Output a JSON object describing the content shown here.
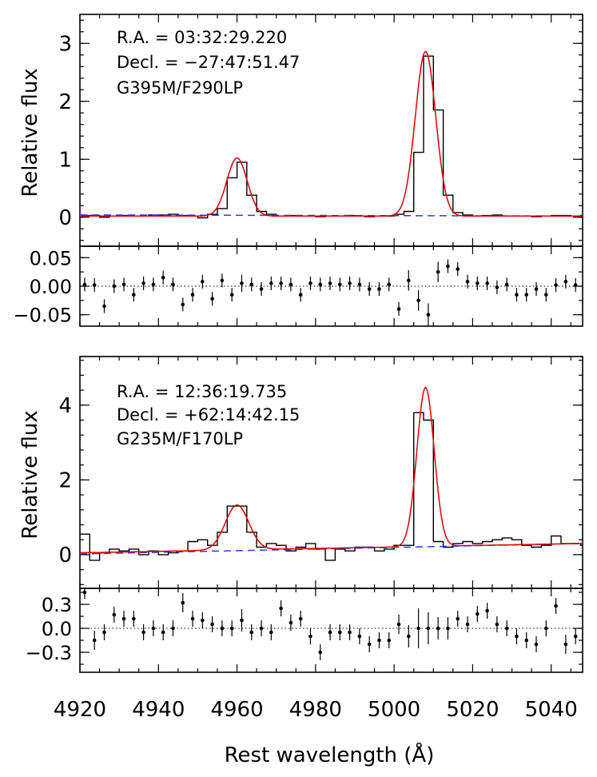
{
  "chart_data": [
    {
      "type": "line",
      "panel": "top-spectrum",
      "ylabel": "Relative flux",
      "annotations": [
        "R.A. = 03:32:29.220",
        "Decl. = −27:47:51.47",
        "G395M/F290LP"
      ],
      "xlim": [
        4920,
        5048
      ],
      "ylim": [
        -0.5,
        3.5
      ],
      "yticks": [
        0,
        1,
        2,
        3
      ],
      "ytick_labels": [
        "0",
        "1",
        "2",
        "3"
      ],
      "series": [
        {
          "style": "step",
          "color": "#000000",
          "x": [
            4920,
            4922.5,
            4925,
            4927.5,
            4930,
            4932.5,
            4935,
            4937.5,
            4940,
            4942.5,
            4945,
            4947.5,
            4950,
            4952.5,
            4955,
            4957.5,
            4960,
            4962.5,
            4965,
            4967.5,
            4970,
            4972.5,
            4975,
            4977.5,
            4980,
            4982.5,
            4985,
            4987.5,
            4990,
            4992.5,
            4995,
            4997.5,
            5000,
            5002.5,
            5005,
            5007.5,
            5010,
            5012.5,
            5015,
            5017.5,
            5020,
            5022.5,
            5025,
            5027.5,
            5030,
            5032.5,
            5035,
            5037.5,
            5040,
            5042.5,
            5045,
            5047.5
          ],
          "y": [
            0.03,
            0.03,
            0.0,
            0.02,
            0.03,
            0.02,
            0.02,
            0.04,
            0.04,
            0.05,
            0.03,
            0.02,
            -0.01,
            0.05,
            0.15,
            0.68,
            0.95,
            0.38,
            0.1,
            0.05,
            0.02,
            0.03,
            0.02,
            0.02,
            0.01,
            0.02,
            0.02,
            0.03,
            0.02,
            0.01,
            0.02,
            0.02,
            0.05,
            0.1,
            1.12,
            2.78,
            1.85,
            0.38,
            0.08,
            0.04,
            0.02,
            0.03,
            0.04,
            0.02,
            0.02,
            0.02,
            0.01,
            0.02,
            0.03,
            0.03,
            0.02,
            0.03
          ]
        },
        {
          "style": "gaussian-fit",
          "color": "#e00000",
          "baseline": [
            0.02,
            0.02
          ],
          "peaks": [
            {
              "center": 4960,
              "amplitude": 1.0,
              "sigma": 2.6
            },
            {
              "center": 5008,
              "amplitude": 2.84,
              "sigma": 2.6
            }
          ]
        },
        {
          "style": "continuum",
          "color": "#2a3ee6",
          "x": [
            4920,
            5048
          ],
          "y": [
            0.04,
            0.02
          ]
        }
      ]
    },
    {
      "type": "scatter",
      "panel": "top-residuals",
      "xlim": [
        4920,
        5048
      ],
      "ylim": [
        -0.07,
        0.07
      ],
      "yticks": [
        0.05,
        0.0,
        -0.05
      ],
      "ytick_labels": [
        "0.05",
        "0.00",
        "−0.05"
      ],
      "zero_line": true,
      "x": [
        4921.2,
        4923.7,
        4926.2,
        4928.7,
        4931.2,
        4933.7,
        4936.2,
        4938.7,
        4941.2,
        4943.7,
        4946.2,
        4948.7,
        4951.2,
        4953.7,
        4956.2,
        4958.7,
        4961.2,
        4963.7,
        4966.2,
        4968.7,
        4971.2,
        4973.7,
        4976.2,
        4978.7,
        4981.2,
        4983.7,
        4986.2,
        4988.7,
        4991.2,
        4993.7,
        4996.2,
        4998.7,
        5001.2,
        5003.7,
        5006.2,
        5008.7,
        5011.2,
        5013.7,
        5016.2,
        5018.7,
        5021.2,
        5023.7,
        5026.2,
        5028.7,
        5031.2,
        5033.7,
        5036.2,
        5038.7,
        5041.2,
        5043.7,
        5046.2
      ],
      "values": [
        0.003,
        0.002,
        -0.035,
        0.0,
        0.003,
        -0.015,
        0.005,
        0.003,
        0.015,
        0.003,
        -0.032,
        -0.015,
        0.008,
        -0.022,
        0.01,
        -0.015,
        0.005,
        0.003,
        -0.005,
        0.005,
        0.005,
        0.003,
        -0.015,
        0.005,
        0.003,
        0.005,
        0.003,
        0.005,
        0.003,
        -0.005,
        -0.005,
        0.003,
        -0.04,
        0.01,
        -0.025,
        -0.05,
        0.025,
        0.035,
        0.03,
        0.008,
        0.005,
        0.005,
        -0.002,
        0.003,
        -0.015,
        -0.015,
        -0.005,
        -0.015,
        0.002,
        0.008,
        0.002
      ],
      "errors": [
        0.012,
        0.012,
        0.012,
        0.012,
        0.012,
        0.012,
        0.012,
        0.012,
        0.012,
        0.012,
        0.012,
        0.012,
        0.012,
        0.012,
        0.012,
        0.012,
        0.015,
        0.012,
        0.012,
        0.012,
        0.012,
        0.012,
        0.012,
        0.012,
        0.012,
        0.012,
        0.012,
        0.012,
        0.012,
        0.012,
        0.012,
        0.012,
        0.012,
        0.018,
        0.018,
        0.02,
        0.018,
        0.012,
        0.012,
        0.012,
        0.012,
        0.012,
        0.012,
        0.012,
        0.012,
        0.012,
        0.012,
        0.012,
        0.012,
        0.012,
        0.012
      ]
    },
    {
      "type": "line",
      "panel": "bottom-spectrum",
      "ylabel": "Relative flux",
      "annotations": [
        "R.A. = 12:36:19.735",
        "Decl. = +62:14:42.15",
        "G235M/F170LP"
      ],
      "xlim": [
        4920,
        5048
      ],
      "ylim": [
        -0.9,
        5.3
      ],
      "yticks": [
        0,
        2,
        4
      ],
      "ytick_labels": [
        "0",
        "2",
        "4"
      ],
      "series": [
        {
          "style": "step",
          "color": "#000000",
          "x": [
            4920,
            4922.5,
            4925,
            4927.5,
            4930,
            4932.5,
            4935,
            4937.5,
            4940,
            4942.5,
            4945,
            4947.5,
            4950,
            4952.5,
            4955,
            4957.5,
            4960,
            4962.5,
            4965,
            4967.5,
            4970,
            4972.5,
            4975,
            4977.5,
            4980,
            4982.5,
            4985,
            4987.5,
            4990,
            4992.5,
            4995,
            4997.5,
            5000,
            5002.5,
            5005,
            5007.5,
            5010,
            5012.5,
            5015,
            5017.5,
            5020,
            5022.5,
            5025,
            5027.5,
            5030,
            5032.5,
            5035,
            5037.5,
            5040,
            5042.5,
            5045,
            5047.5
          ],
          "y": [
            0.55,
            -0.15,
            0.05,
            0.15,
            0.1,
            0.15,
            0.0,
            0.1,
            0.0,
            0.05,
            0.1,
            0.35,
            0.4,
            0.25,
            0.6,
            1.3,
            1.3,
            0.6,
            0.2,
            0.3,
            0.25,
            0.1,
            0.2,
            0.3,
            0.15,
            -0.15,
            0.15,
            0.1,
            0.2,
            0.2,
            0.1,
            0.15,
            0.25,
            0.25,
            3.8,
            3.6,
            0.35,
            0.2,
            0.3,
            0.35,
            0.3,
            0.35,
            0.4,
            0.45,
            0.4,
            0.25,
            0.2,
            0.25,
            0.5,
            0.3,
            0.3,
            0.25
          ]
        },
        {
          "style": "gaussian-fit",
          "color": "#e00000",
          "baseline": [
            0.05,
            0.3
          ],
          "peaks": [
            {
              "center": 4960,
              "amplitude": 1.2,
              "sigma": 3.0
            },
            {
              "center": 5008,
              "amplitude": 4.25,
              "sigma": 2.2
            }
          ]
        },
        {
          "style": "continuum",
          "color": "#2a3ee6",
          "x": [
            4920,
            5048
          ],
          "y": [
            0.02,
            0.3
          ]
        }
      ]
    },
    {
      "type": "scatter",
      "panel": "bottom-residuals",
      "xlim": [
        4920,
        5048
      ],
      "xlabel": "Rest wavelength (Å)",
      "xticks": [
        4920,
        4940,
        4960,
        4980,
        5000,
        5020,
        5040
      ],
      "xtick_labels": [
        "4920",
        "4940",
        "4960",
        "4980",
        "5000",
        "5020",
        "5040"
      ],
      "ylim": [
        -0.55,
        0.5
      ],
      "yticks": [
        0.3,
        0.0,
        -0.3
      ],
      "ytick_labels": [
        "0.3",
        "0.0",
        "−0.3"
      ],
      "zero_line": true,
      "x": [
        4921.2,
        4923.7,
        4926.2,
        4928.7,
        4931.2,
        4933.7,
        4936.2,
        4938.7,
        4941.2,
        4943.7,
        4946.2,
        4948.7,
        4951.2,
        4953.7,
        4956.2,
        4958.7,
        4961.2,
        4963.7,
        4966.2,
        4968.7,
        4971.2,
        4973.7,
        4976.2,
        4978.7,
        4981.2,
        4983.7,
        4986.2,
        4988.7,
        4991.2,
        4993.7,
        4996.2,
        4998.7,
        5001.2,
        5003.7,
        5006.2,
        5008.7,
        5011.2,
        5013.7,
        5016.2,
        5018.7,
        5021.2,
        5023.7,
        5026.2,
        5028.7,
        5031.2,
        5033.7,
        5036.2,
        5038.7,
        5041.2,
        5043.7,
        5046.2
      ],
      "values": [
        0.45,
        -0.15,
        -0.05,
        0.17,
        0.12,
        0.12,
        -0.05,
        0.0,
        -0.05,
        0.0,
        0.32,
        0.12,
        0.1,
        0.05,
        0.0,
        0.0,
        0.1,
        -0.05,
        0.0,
        -0.05,
        0.25,
        0.07,
        0.12,
        -0.1,
        -0.3,
        -0.05,
        -0.05,
        -0.05,
        -0.1,
        -0.2,
        -0.15,
        -0.15,
        0.05,
        -0.1,
        0.0,
        0.0,
        0.0,
        0.0,
        0.12,
        0.05,
        0.18,
        0.22,
        0.05,
        0.0,
        -0.1,
        -0.15,
        -0.2,
        0.0,
        0.28,
        -0.2,
        -0.1
      ],
      "errors": [
        0.08,
        0.12,
        0.1,
        0.1,
        0.1,
        0.1,
        0.1,
        0.1,
        0.1,
        0.1,
        0.12,
        0.1,
        0.1,
        0.1,
        0.1,
        0.1,
        0.14,
        0.1,
        0.1,
        0.1,
        0.1,
        0.1,
        0.1,
        0.1,
        0.1,
        0.1,
        0.1,
        0.1,
        0.1,
        0.1,
        0.1,
        0.1,
        0.12,
        0.14,
        0.25,
        0.2,
        0.14,
        0.14,
        0.1,
        0.1,
        0.1,
        0.1,
        0.1,
        0.1,
        0.1,
        0.1,
        0.1,
        0.1,
        0.1,
        0.12,
        0.1
      ]
    }
  ]
}
